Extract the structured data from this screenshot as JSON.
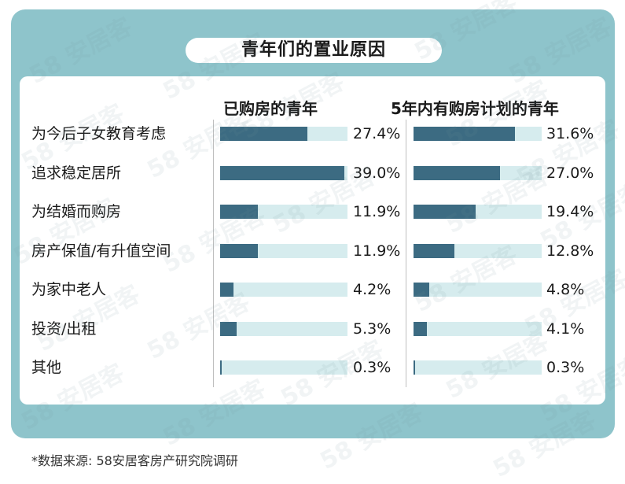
{
  "title": "青年们的置业原因",
  "columns": [
    "已购房的青年",
    "5年内有购房计划的青年"
  ],
  "watermark": "58 安居客",
  "footnote": "*数据来源: 58安居客房产研究院调研",
  "colors": {
    "panel": "#8ec4cb",
    "bar": "#3c6b82",
    "track": "#d6ecee"
  },
  "chart_data": {
    "type": "bar",
    "orientation": "horizontal",
    "categories": [
      "为今后子女教育考虑",
      "追求稳定居所",
      "为结婚而购房",
      "房产保值/有升值空间",
      "为家中老人",
      "投资/出租",
      "其他"
    ],
    "series": [
      {
        "name": "已购房的青年",
        "values": [
          27.4,
          39.0,
          11.9,
          11.9,
          4.2,
          5.3,
          0.3
        ],
        "labels": [
          "27.4%",
          "39.0%",
          "11.9%",
          "11.9%",
          "4.2%",
          "5.3%",
          "0.3%"
        ]
      },
      {
        "name": "5年内有购房计划的青年",
        "values": [
          31.6,
          27.0,
          19.4,
          12.8,
          4.8,
          4.1,
          0.3
        ],
        "labels": [
          "31.6%",
          "27.0%",
          "19.4%",
          "12.8%",
          "4.8%",
          "4.1%",
          "0.3%"
        ]
      }
    ],
    "xlim": [
      0,
      40
    ]
  }
}
